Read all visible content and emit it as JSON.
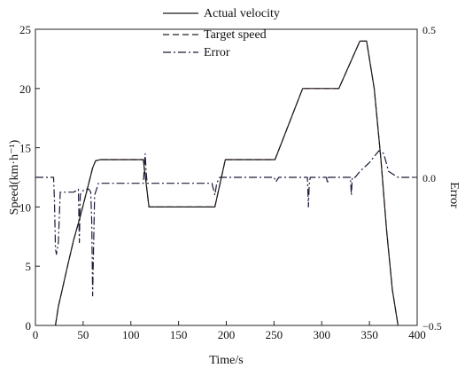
{
  "chart_data": {
    "type": "line",
    "xlabel": "Time/s",
    "ylabel": "Speed(km·h⁻¹)",
    "y2label": "Error",
    "xlim": [
      0,
      400
    ],
    "ylim": [
      0,
      25
    ],
    "y2lim": [
      -0.5,
      0.5
    ],
    "xticks": [
      0,
      50,
      100,
      150,
      200,
      250,
      300,
      350,
      400
    ],
    "yticks": [
      0,
      5,
      10,
      15,
      20,
      25
    ],
    "y2ticks": [
      -0.5,
      0.0,
      0.5
    ],
    "xtick_labels": [
      "0",
      "50",
      "100",
      "150",
      "200",
      "250",
      "300",
      "350",
      "400"
    ],
    "ytick_labels": [
      "0",
      "5",
      "10",
      "15",
      "20",
      "25"
    ],
    "y2tick_labels": [
      "−0.5",
      "0.0",
      "0.5"
    ],
    "grid": false,
    "legend_position": "top-center",
    "series": [
      {
        "name": "Actual velocity",
        "axis": "left",
        "color": "#1a1a1a",
        "dash": "solid",
        "x": [
          21,
          24,
          28,
          33,
          40,
          47,
          54,
          60,
          63,
          68,
          80,
          100,
          113,
          119,
          150,
          188,
          199,
          225,
          251,
          280,
          300,
          318,
          340,
          347,
          355,
          362,
          368,
          374,
          380
        ],
        "y": [
          0,
          1.6,
          3,
          4.8,
          7.2,
          9.2,
          11.4,
          13.3,
          13.9,
          14,
          14,
          14,
          14,
          10,
          10,
          10,
          14,
          14,
          14,
          20,
          20,
          20,
          24,
          24,
          20,
          14,
          8,
          3,
          0
        ]
      },
      {
        "name": "Target speed",
        "axis": "left",
        "color": "#8a1f1f",
        "dash": "dashed",
        "x": [
          21,
          24,
          28,
          33,
          40,
          47,
          54,
          60,
          63,
          68,
          80,
          100,
          113,
          119,
          150,
          188,
          199,
          225,
          251,
          280,
          300,
          318,
          340,
          347,
          355,
          362,
          368,
          374,
          380
        ],
        "y": [
          0,
          1.6,
          3,
          4.8,
          7.2,
          9.2,
          11.4,
          13.3,
          13.9,
          14,
          14,
          14,
          14,
          10,
          10,
          10,
          14,
          14,
          14,
          20,
          20,
          20,
          24,
          24,
          20,
          14,
          8,
          3,
          0
        ]
      },
      {
        "name": "Error",
        "axis": "right",
        "color": "#1a1a3a",
        "dash": "dashdot",
        "x": [
          0,
          19,
          20,
          21,
          22,
          24,
          26,
          30,
          40,
          45,
          46,
          47,
          48,
          52,
          56,
          58,
          59,
          60,
          62,
          64,
          66,
          100,
          113,
          115,
          116,
          117,
          119,
          150,
          185,
          188,
          190,
          193,
          200,
          250,
          252,
          255,
          285,
          286,
          287,
          288,
          292,
          300,
          305,
          306,
          307,
          320,
          330,
          331,
          332,
          335,
          340,
          350,
          360,
          365,
          370,
          380,
          400
        ],
        "y": [
          0,
          0,
          -0.08,
          -0.24,
          -0.26,
          -0.22,
          -0.05,
          -0.05,
          -0.05,
          -0.04,
          -0.22,
          -0.06,
          -0.05,
          -0.04,
          -0.04,
          -0.05,
          -0.15,
          -0.4,
          -0.06,
          -0.04,
          -0.02,
          -0.02,
          -0.02,
          0.08,
          0.02,
          -0.02,
          -0.02,
          -0.02,
          -0.02,
          -0.06,
          -0.02,
          0,
          0,
          0,
          -0.015,
          0,
          0,
          -0.1,
          -0.02,
          0,
          0,
          0,
          0,
          -0.02,
          0,
          0,
          0,
          -0.06,
          0,
          0,
          0.02,
          0.05,
          0.09,
          0.08,
          0.02,
          0,
          0
        ]
      }
    ]
  }
}
